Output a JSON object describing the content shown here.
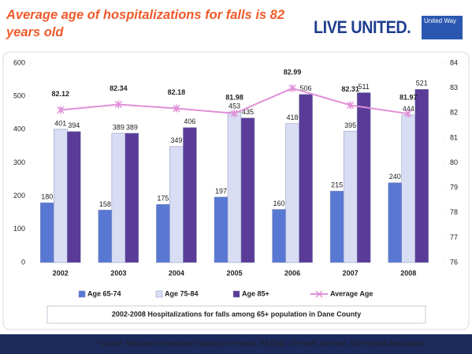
{
  "title": "Average age of hospitalizations for falls is 82 years old",
  "logo": "LIVE UNITED.",
  "logo_badge": "United Way",
  "footer": "* Source: Wisconsin Interactive Statistics on Health, WI Dept. of Health Services, WI Hospital Association",
  "chart_data": {
    "type": "bar",
    "caption": "2002-2008 Hospitalizations for falls among 65+ population in Dane County",
    "categories": [
      "2002",
      "2003",
      "2004",
      "2005",
      "2006",
      "2007",
      "2008"
    ],
    "series": [
      {
        "name": "Age 65-74",
        "color": "#5878d4",
        "values": [
          180,
          158,
          175,
          197,
          160,
          215,
          240
        ]
      },
      {
        "name": "Age 75-84",
        "color": "#d8ddf4",
        "values": [
          401,
          389,
          349,
          453,
          418,
          395,
          444
        ]
      },
      {
        "name": "Age 85+",
        "color": "#5a3c98",
        "values": [
          394,
          389,
          406,
          435,
          506,
          511,
          521
        ]
      },
      {
        "name": "Average Age",
        "color": "#e08fd8",
        "type": "line",
        "axis": "y2",
        "values": [
          82.12,
          82.34,
          82.18,
          81.98,
          82.99,
          82.31,
          81.97
        ]
      }
    ],
    "ylim": [
      0,
      600
    ],
    "yticks": [
      0,
      100,
      200,
      300,
      400,
      500,
      600
    ],
    "y2lim": [
      76,
      84
    ],
    "y2ticks": [
      76,
      77,
      78,
      79,
      80,
      81,
      82,
      83,
      84
    ],
    "legend": "bottom"
  }
}
